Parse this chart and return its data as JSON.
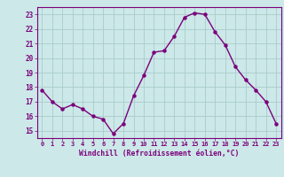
{
  "x": [
    0,
    1,
    2,
    3,
    4,
    5,
    6,
    7,
    8,
    9,
    10,
    11,
    12,
    13,
    14,
    15,
    16,
    17,
    18,
    19,
    20,
    21,
    22,
    23
  ],
  "y": [
    17.8,
    17.0,
    16.5,
    16.8,
    16.5,
    16.0,
    15.8,
    14.8,
    15.5,
    17.4,
    18.8,
    20.4,
    20.5,
    21.5,
    22.8,
    23.1,
    23.0,
    21.8,
    20.9,
    19.4,
    18.5,
    17.8,
    17.0,
    15.5
  ],
  "ylim": [
    14.5,
    23.5
  ],
  "yticks": [
    15,
    16,
    17,
    18,
    19,
    20,
    21,
    22,
    23
  ],
  "xticks": [
    0,
    1,
    2,
    3,
    4,
    5,
    6,
    7,
    8,
    9,
    10,
    11,
    12,
    13,
    14,
    15,
    16,
    17,
    18,
    19,
    20,
    21,
    22,
    23
  ],
  "xlabel": "Windchill (Refroidissement éolien,°C)",
  "line_color": "#7B007B",
  "marker": "o",
  "marker_size": 2.2,
  "bg_color": "#cce8e8",
  "grid_color": "#aacccc",
  "tick_color": "#7B007B",
  "label_color": "#7B007B",
  "linewidth": 1.0
}
